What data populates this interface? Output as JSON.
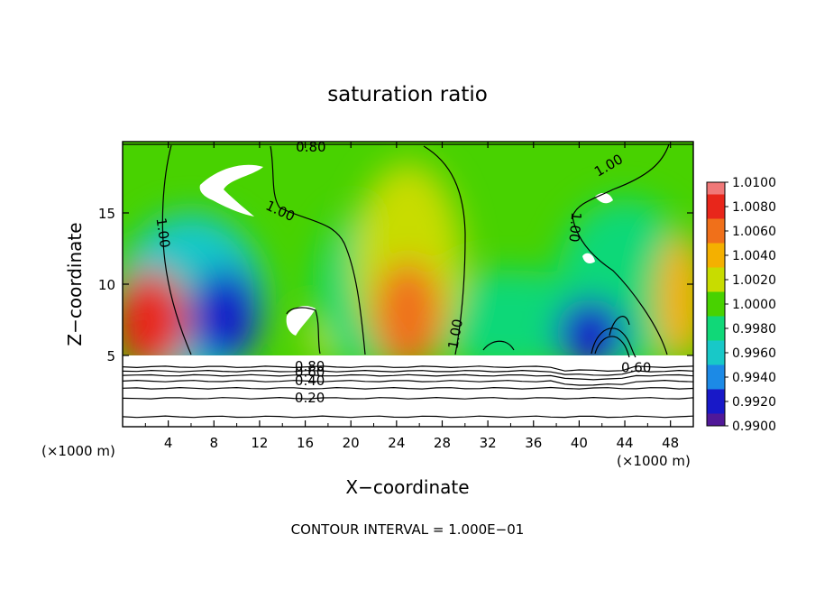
{
  "chart_data": {
    "type": "heatmap",
    "title": "saturation ratio",
    "xlabel": "X−coordinate",
    "ylabel": "Z−coordinate",
    "x_unit_left": "(×1000 m)",
    "x_unit_right": "(×1000 m)",
    "xlim": [
      0,
      50
    ],
    "ylim": [
      0,
      20
    ],
    "xticks": [
      4,
      8,
      12,
      16,
      20,
      24,
      28,
      32,
      36,
      40,
      44,
      48
    ],
    "yticks": [
      5,
      10,
      15
    ],
    "footer": "CONTOUR INTERVAL = 1.000E−01",
    "colorbar": {
      "labels": [
        "1.0100",
        "1.0080",
        "1.0060",
        "1.0040",
        "1.0020",
        "1.0000",
        "0.9980",
        "0.9960",
        "0.9940",
        "0.9920",
        "0.9900"
      ],
      "colors": [
        "#f07878",
        "#e8261b",
        "#f0701a",
        "#f4b000",
        "#c8dc00",
        "#48d200",
        "#10d878",
        "#18c8c8",
        "#1c8ae6",
        "#1818c8",
        "#501898"
      ]
    },
    "contour_labels": [
      {
        "text": "0.80",
        "x": 16.5,
        "z": 19.6,
        "rotate": 0
      },
      {
        "text": "1.00",
        "x": 3.5,
        "z": 13.6,
        "rotate": 82
      },
      {
        "text": "1.00",
        "x": 13.8,
        "z": 15.1,
        "rotate": 25
      },
      {
        "text": "1.00",
        "x": 29.2,
        "z": 6.5,
        "rotate": -80
      },
      {
        "text": "1.00",
        "x": 42.6,
        "z": 18.3,
        "rotate": -30
      },
      {
        "text": "1.00",
        "x": 39.6,
        "z": 14.0,
        "rotate": 95
      },
      {
        "text": "0.80",
        "x": 16.4,
        "z": 4.2,
        "rotate": 0
      },
      {
        "text": "0.60",
        "x": 16.4,
        "z": 3.8,
        "rotate": 0
      },
      {
        "text": "0.40",
        "x": 16.4,
        "z": 3.2,
        "rotate": 0
      },
      {
        "text": "0.20",
        "x": 16.4,
        "z": 2.0,
        "rotate": 0
      },
      {
        "text": "0.60",
        "x": 45.0,
        "z": 4.1,
        "rotate": 0
      }
    ],
    "low_levels_z": [
      4.2,
      3.9,
      3.6,
      3.2,
      2.7,
      2.0,
      0.7
    ],
    "plumes": [
      {
        "x": 2.5,
        "z": 7.5,
        "value": 1.0075,
        "rx": 3.2,
        "rz": 3.5
      },
      {
        "x": 25,
        "z": 7.8,
        "value": 1.0068,
        "rx": 3.0,
        "rz": 3.8
      },
      {
        "x": 49,
        "z": 9.0,
        "value": 1.004,
        "rx": 2.2,
        "rz": 4.5
      },
      {
        "x": 9.0,
        "z": 7.8,
        "value": 0.9918,
        "rx": 3.0,
        "rz": 3.3
      },
      {
        "x": 41.0,
        "z": 6.5,
        "value": 0.9925,
        "rx": 3.0,
        "rz": 2.5
      },
      {
        "x": 6.0,
        "z": 9.0,
        "value": 0.9962,
        "rx": 6.5,
        "rz": 6.0
      },
      {
        "x": 21,
        "z": 9.5,
        "value": 0.9978,
        "rx": 4.0,
        "rz": 5.5
      },
      {
        "x": 25,
        "z": 11.5,
        "value": 1.0025,
        "rx": 4.8,
        "rz": 7.0
      },
      {
        "x": 34,
        "z": 7.5,
        "value": 0.9978,
        "rx": 7.5,
        "rz": 3.5
      },
      {
        "x": 44,
        "z": 10.0,
        "value": 0.998,
        "rx": 6.0,
        "rz": 6.0
      },
      {
        "x": 17.5,
        "z": 6.3,
        "value": 1.0018,
        "rx": 1.3,
        "rz": 1.6
      }
    ]
  }
}
